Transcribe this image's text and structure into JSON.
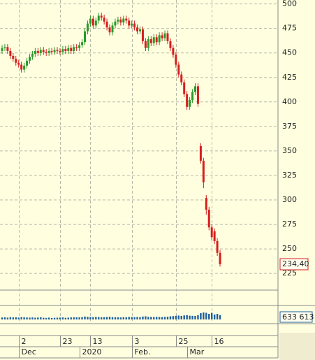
{
  "chart_data": {
    "type": "candlestick",
    "categories": [
      null,
      null,
      null,
      null,
      null,
      null,
      "2",
      null,
      null,
      null,
      null,
      null,
      null,
      null,
      null,
      null,
      null,
      null,
      null,
      null,
      null,
      "23",
      null,
      null,
      null,
      null,
      null,
      null,
      null,
      null,
      null,
      null,
      "13",
      null,
      null,
      null,
      null,
      null,
      null,
      null,
      null,
      null,
      null,
      null,
      null,
      null,
      null,
      "3",
      null,
      null,
      null,
      null,
      null,
      null,
      null,
      null,
      null,
      null,
      null,
      null,
      null,
      null,
      null,
      "25",
      null,
      null,
      null,
      null,
      null,
      null,
      null,
      null,
      null,
      null,
      null,
      null,
      "16",
      null,
      null,
      null
    ],
    "months": [
      null,
      null,
      null,
      null,
      null,
      null,
      "Dec",
      null,
      null,
      null,
      null,
      null,
      null,
      null,
      null,
      null,
      null,
      null,
      null,
      null,
      null,
      null,
      null,
      null,
      null,
      null,
      null,
      null,
      "2020",
      null,
      null,
      null,
      null,
      null,
      null,
      null,
      null,
      null,
      null,
      null,
      null,
      null,
      null,
      null,
      null,
      null,
      null,
      "Feb.",
      null,
      null,
      null,
      null,
      null,
      null,
      null,
      null,
      null,
      null,
      null,
      null,
      null,
      null,
      null,
      null,
      null,
      null,
      null,
      "Mar",
      null,
      null,
      null,
      null,
      null,
      null,
      null,
      null,
      null,
      null,
      null,
      null
    ],
    "open": [
      452,
      455,
      456,
      452,
      447,
      444,
      440,
      438,
      433,
      437,
      442,
      446,
      449,
      452,
      450,
      453,
      451,
      450,
      452,
      451,
      453,
      452,
      451,
      454,
      452,
      455,
      452,
      456,
      455,
      458,
      461,
      472,
      480,
      485,
      478,
      483,
      488,
      486,
      482,
      476,
      471,
      478,
      482,
      484,
      481,
      485,
      483,
      478,
      480,
      476,
      472,
      474,
      462,
      455,
      464,
      460,
      466,
      461,
      468,
      465,
      470,
      462,
      455,
      448,
      438,
      428,
      420,
      408,
      395,
      402,
      410,
      416,
      355,
      340,
      302,
      290,
      272,
      268,
      258,
      246
    ],
    "high": [
      458,
      459,
      459,
      455,
      450,
      447,
      443,
      441,
      440,
      445,
      449,
      452,
      455,
      455,
      456,
      456,
      454,
      455,
      455,
      456,
      456,
      455,
      457,
      457,
      458,
      458,
      459,
      459,
      461,
      464,
      475,
      483,
      488,
      488,
      486,
      491,
      491,
      489,
      485,
      479,
      481,
      485,
      487,
      487,
      488,
      488,
      486,
      483,
      483,
      479,
      477,
      477,
      465,
      467,
      467,
      469,
      469,
      471,
      471,
      473,
      473,
      465,
      458,
      451,
      441,
      431,
      423,
      411,
      405,
      413,
      419,
      419,
      358,
      343,
      305,
      293,
      275,
      271,
      261,
      249
    ],
    "low": [
      449,
      452,
      449,
      444,
      441,
      437,
      435,
      430,
      430,
      434,
      439,
      443,
      446,
      447,
      447,
      448,
      447,
      447,
      448,
      448,
      449,
      448,
      448,
      449,
      449,
      449,
      449,
      452,
      452,
      455,
      458,
      469,
      477,
      475,
      475,
      480,
      483,
      479,
      473,
      468,
      468,
      475,
      479,
      478,
      478,
      480,
      475,
      475,
      473,
      469,
      469,
      459,
      452,
      452,
      457,
      457,
      458,
      458,
      462,
      462,
      459,
      452,
      445,
      435,
      425,
      417,
      405,
      392,
      392,
      399,
      407,
      395,
      337,
      312,
      285,
      269,
      259,
      255,
      243,
      232
    ],
    "close": [
      455,
      456,
      452,
      447,
      444,
      440,
      438,
      433,
      437,
      442,
      446,
      449,
      452,
      450,
      453,
      451,
      450,
      452,
      451,
      453,
      452,
      451,
      454,
      452,
      455,
      452,
      456,
      455,
      458,
      461,
      472,
      480,
      485,
      478,
      483,
      488,
      486,
      482,
      476,
      471,
      478,
      482,
      484,
      481,
      485,
      483,
      478,
      480,
      476,
      472,
      474,
      462,
      455,
      464,
      460,
      466,
      461,
      468,
      465,
      470,
      462,
      455,
      448,
      438,
      428,
      420,
      408,
      395,
      402,
      410,
      416,
      398,
      340,
      318,
      290,
      272,
      262,
      258,
      246,
      234.4
    ],
    "volume": [
      280000,
      300000,
      260000,
      320000,
      290000,
      310000,
      270000,
      330000,
      300000,
      280000,
      260000,
      290000,
      250000,
      270000,
      300000,
      240000,
      220000,
      260000,
      200000,
      230000,
      250000,
      270000,
      280000,
      240000,
      260000,
      290000,
      300000,
      310000,
      290000,
      330000,
      420000,
      380000,
      350000,
      330000,
      360000,
      340000,
      300000,
      320000,
      350000,
      380000,
      330000,
      310000,
      300000,
      290000,
      320000,
      310000,
      360000,
      340000,
      330000,
      350000,
      320000,
      420000,
      450000,
      380000,
      360000,
      340000,
      370000,
      350000,
      330000,
      360000,
      400000,
      450000,
      480000,
      520000,
      560000,
      500000,
      580000,
      620000,
      540000,
      520000,
      500000,
      600000,
      900000,
      1000000,
      950000,
      800000,
      950000,
      700000,
      800000,
      633613
    ],
    "last_price": {
      "value": 234.4,
      "label": "234,40"
    },
    "last_volume": {
      "value": 633613,
      "label": "633 613"
    },
    "up_color": "#2a9a2a",
    "down_color": "#d61e1e",
    "volume_color": "#1f5f9f",
    "ylim": [
      208,
      504
    ],
    "yticks": [
      225,
      250,
      275,
      300,
      325,
      350,
      375,
      400,
      425,
      450,
      475,
      500
    ],
    "grid": true
  }
}
